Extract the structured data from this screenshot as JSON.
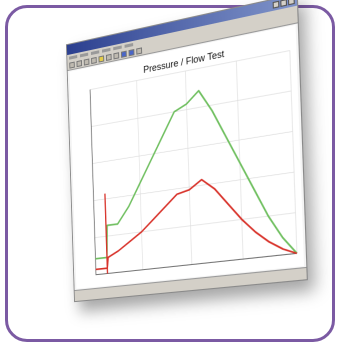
{
  "window": {
    "title": "",
    "status_left": "",
    "status_right": ""
  },
  "chart_data": {
    "type": "line",
    "title": "Pressure / Flow Test",
    "xlabel": "",
    "ylabel": "",
    "x": [
      0,
      2,
      2.2,
      4,
      6,
      8,
      10,
      12,
      14,
      16,
      18,
      20,
      22,
      24,
      26,
      28,
      30,
      32
    ],
    "series": [
      {
        "color": "#6fbf5f",
        "values": [
          6,
          6,
          18,
          18,
          24,
          32,
          40,
          48,
          56,
          58,
          62,
          54,
          44,
          34,
          24,
          14,
          6,
          0
        ]
      },
      {
        "color": "#d8322a",
        "values": [
          2,
          2,
          6,
          8,
          11,
          14,
          18,
          22,
          26,
          27,
          30,
          26,
          20,
          14,
          9,
          5,
          2,
          0
        ]
      }
    ],
    "spike": {
      "x": 2,
      "value": 30,
      "color": "#d8322a"
    },
    "xlim": [
      0,
      32
    ],
    "ylim": [
      0,
      70
    ],
    "grid": true
  },
  "colors": {
    "frame": "#7b5aa3",
    "titlebar": "#2b3f8f",
    "grid": "#dcdcdc"
  }
}
